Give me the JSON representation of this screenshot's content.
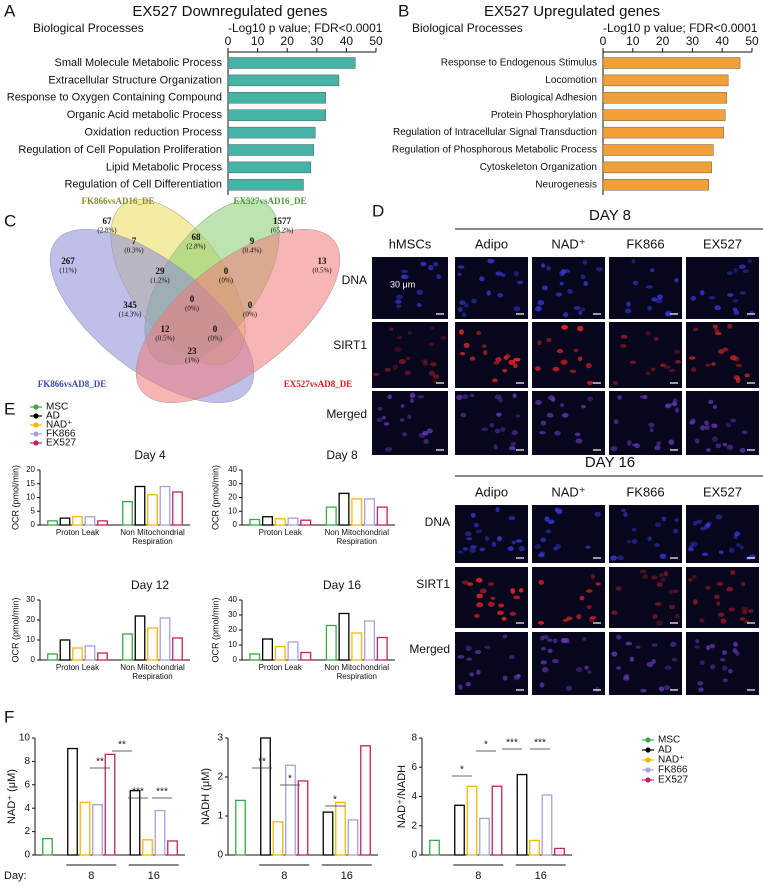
{
  "panel_labels": [
    "A",
    "B",
    "C",
    "D",
    "E",
    "F"
  ],
  "chart_data": [
    {
      "type": "barh",
      "title": "EX527 Downregulated genes",
      "category_header": "Biological Processes",
      "xlabel": "-Log10 p value; FDR<0.0001",
      "categories": [
        "Small Molecule Metabolic Process",
        "Extracellular Structure Organization",
        "Response to Oxygen Containing Compound",
        "Organic Acid metabolic Process",
        "Oxidation reduction Process",
        "Regulation of Cell Population Proliferation",
        "Lipid Metabolic Process",
        "Regulation of Cell Differentiation"
      ],
      "values": [
        43,
        37.5,
        33,
        33,
        29.5,
        29,
        28,
        25.5
      ],
      "color": "#45b3a5",
      "xlim": [
        0,
        50
      ],
      "xticks": [
        0,
        10,
        20,
        30,
        40,
        50
      ]
    },
    {
      "type": "barh",
      "title": "EX527 Upregulated genes",
      "category_header": "Biological Processes",
      "xlabel": "-Log10 p value; FDR<0.0001",
      "categories": [
        "Response to Endogenous Stimulus",
        "Locomotion",
        "Biological Adhesion",
        "Protein Phosphorylation",
        "Regulation of Intracellular Signal Transduction",
        "Regulation of Phosphorous Metabolic Process",
        "Cytoskeleton Organization",
        "Neurogenesis"
      ],
      "values": [
        46,
        42,
        41.5,
        41,
        40.5,
        37,
        36.5,
        35.5
      ],
      "color": "#f0a036",
      "xlim": [
        0,
        50
      ],
      "xticks": [
        0,
        10,
        20,
        30,
        40,
        50
      ]
    },
    {
      "type": "bar",
      "title": "Day 4",
      "ylabel": "OCR (pmol/min)",
      "categories": [
        "Proton Leak",
        "Non Mitochondrial Respiration"
      ],
      "ylim": [
        0,
        20
      ],
      "yticks": [
        0,
        5,
        10,
        15,
        20
      ],
      "series": [
        {
          "name": "MSC",
          "color": "#3aa845",
          "values": [
            1.5,
            8.5
          ]
        },
        {
          "name": "AD",
          "color": "#000000",
          "values": [
            2.5,
            14
          ]
        },
        {
          "name": "NAD⁺",
          "color": "#f5b800",
          "values": [
            3,
            11
          ]
        },
        {
          "name": "FK866",
          "color": "#a9a0e0",
          "values": [
            3,
            14
          ]
        },
        {
          "name": "EX527",
          "color": "#c8205a",
          "values": [
            1.5,
            12
          ]
        }
      ]
    },
    {
      "type": "bar",
      "title": "Day 8",
      "ylabel": "OCR (pmol/min)",
      "categories": [
        "Proton Leak",
        "Non Mitochondrial Respiration"
      ],
      "ylim": [
        0,
        40
      ],
      "yticks": [
        0,
        10,
        20,
        30,
        40
      ],
      "series": [
        {
          "color": "#3aa845",
          "values": [
            4,
            13
          ]
        },
        {
          "color": "#000000",
          "values": [
            6,
            23
          ]
        },
        {
          "color": "#f5b800",
          "values": [
            4.5,
            19
          ]
        },
        {
          "color": "#a9a0e0",
          "values": [
            5,
            19
          ]
        },
        {
          "color": "#c8205a",
          "values": [
            3.5,
            13
          ]
        }
      ]
    },
    {
      "type": "bar",
      "title": "Day 12",
      "ylabel": "OCR (pmol/min)",
      "categories": [
        "Proton Leak",
        "Non Mitochondrial Respiration"
      ],
      "ylim": [
        0,
        30
      ],
      "yticks": [
        0,
        10,
        20,
        30
      ],
      "series": [
        {
          "color": "#3aa845",
          "values": [
            3,
            13
          ]
        },
        {
          "color": "#000000",
          "values": [
            10,
            22
          ]
        },
        {
          "color": "#f5b800",
          "values": [
            6,
            16
          ]
        },
        {
          "color": "#a9a0e0",
          "values": [
            7,
            21
          ]
        },
        {
          "color": "#c8205a",
          "values": [
            3.5,
            11
          ]
        }
      ]
    },
    {
      "type": "bar",
      "title": "Day 16",
      "ylabel": "OCR (pmol/min)",
      "categories": [
        "Proton Leak",
        "Non Mitochondrial Respiration"
      ],
      "ylim": [
        0,
        40
      ],
      "yticks": [
        0,
        10,
        20,
        30,
        40
      ],
      "series": [
        {
          "color": "#3aa845",
          "values": [
            4,
            23
          ]
        },
        {
          "color": "#000000",
          "values": [
            14,
            31
          ]
        },
        {
          "color": "#f5b800",
          "values": [
            9,
            18
          ]
        },
        {
          "color": "#a9a0e0",
          "values": [
            12,
            26
          ]
        },
        {
          "color": "#c8205a",
          "values": [
            5,
            15
          ]
        }
      ]
    },
    {
      "type": "bar",
      "ylabel": "NAD⁺ (μM)",
      "xlabel": "Day:",
      "categories": [
        null,
        "8",
        "16"
      ],
      "ylim": [
        0,
        10
      ],
      "yticks": [
        0,
        2,
        4,
        6,
        8,
        10
      ],
      "series": [
        {
          "color": "#3aa845",
          "values": [
            1.4,
            null,
            null
          ]
        },
        {
          "color": "#000000",
          "values": [
            null,
            9.1,
            5.5
          ]
        },
        {
          "color": "#f5b800",
          "values": [
            null,
            4.5,
            1.3
          ]
        },
        {
          "color": "#a9a0e0",
          "values": [
            null,
            4.3,
            3.8
          ]
        },
        {
          "color": "#c8205a",
          "values": [
            null,
            8.6,
            1.2
          ]
        }
      ],
      "annotations": [
        "**",
        "**",
        "***",
        "***"
      ]
    },
    {
      "type": "bar",
      "ylabel": "NADH (μM)",
      "categories": [
        null,
        "8",
        "16"
      ],
      "ylim": [
        0,
        3
      ],
      "yticks": [
        0,
        1,
        2,
        3
      ],
      "series": [
        {
          "color": "#3aa845",
          "values": [
            1.4,
            null,
            null
          ]
        },
        {
          "color": "#000000",
          "values": [
            null,
            3.0,
            1.1
          ]
        },
        {
          "color": "#f5b800",
          "values": [
            null,
            0.85,
            1.35
          ]
        },
        {
          "color": "#a9a0e0",
          "values": [
            null,
            2.3,
            0.9
          ]
        },
        {
          "color": "#c8205a",
          "values": [
            null,
            1.9,
            2.8
          ]
        }
      ],
      "annotations": [
        "**",
        "*",
        "*"
      ]
    },
    {
      "type": "bar",
      "ylabel": "NAD⁺/NADH",
      "categories": [
        null,
        "8",
        "16"
      ],
      "ylim": [
        0,
        8
      ],
      "yticks": [
        0,
        2,
        4,
        6,
        8
      ],
      "series": [
        {
          "name": "MSC",
          "color": "#3aa845",
          "values": [
            1.0,
            null,
            null
          ]
        },
        {
          "name": "AD",
          "color": "#000000",
          "values": [
            null,
            3.4,
            5.5
          ]
        },
        {
          "name": "NAD⁺",
          "color": "#f5b800",
          "values": [
            null,
            4.7,
            1.0
          ]
        },
        {
          "name": "FK866",
          "color": "#a9a0e0",
          "values": [
            null,
            2.5,
            4.1
          ]
        },
        {
          "name": "EX527",
          "color": "#c8205a",
          "values": [
            null,
            4.7,
            0.45
          ]
        }
      ],
      "annotations": [
        "*",
        "*",
        "***",
        "***"
      ]
    }
  ],
  "venn": {
    "sets": [
      {
        "label": "FK866vsAD16_DE",
        "color": "#ecdc5a",
        "text_color": "#8a8a2a"
      },
      {
        "label": "EX527vsAD16_DE",
        "color": "#86cc70",
        "text_color": "#4a9a3a"
      },
      {
        "label": "FK866vsAD8_DE",
        "color": "#8a8ad8",
        "text_color": "#3a4ab0"
      },
      {
        "label": "EX527vsAD8_DE",
        "color": "#f07a78",
        "text_color": "#d02020"
      }
    ],
    "regions": [
      {
        "count": 67,
        "percent": "(2.8%)"
      },
      {
        "count": 1577,
        "percent": "(65.2%)"
      },
      {
        "count": 267,
        "percent": "(11%)"
      },
      {
        "count": 7,
        "percent": "(0.3%)"
      },
      {
        "count": 68,
        "percent": "(2.8%)"
      },
      {
        "count": 9,
        "percent": "(0.4%)"
      },
      {
        "count": 13,
        "percent": "(0.5%)"
      },
      {
        "count": 29,
        "percent": "(1.2%)"
      },
      {
        "count": 0,
        "percent": "(0%)"
      },
      {
        "count": 345,
        "percent": "(14.3%)"
      },
      {
        "count": 0,
        "percent": "(0%)"
      },
      {
        "count": 0,
        "percent": "(0%)"
      },
      {
        "count": 12,
        "percent": "(0.5%)"
      },
      {
        "count": 0,
        "percent": "(0%)"
      },
      {
        "count": 23,
        "percent": "(1%)"
      }
    ]
  },
  "micrographs": {
    "day8": {
      "title": "DAY 8",
      "reference": "hMSCs",
      "columns": [
        "Adipo",
        "NAD⁺",
        "FK866",
        "EX527"
      ],
      "rows": [
        "DNA",
        "SIRT1",
        "Merged"
      ],
      "scale_bar": "30 μm"
    },
    "day16": {
      "title": "DAY 16",
      "columns": [
        "Adipo",
        "NAD⁺",
        "FK866",
        "EX527"
      ],
      "rows": [
        "DNA",
        "SIRT1",
        "Merged"
      ]
    }
  }
}
